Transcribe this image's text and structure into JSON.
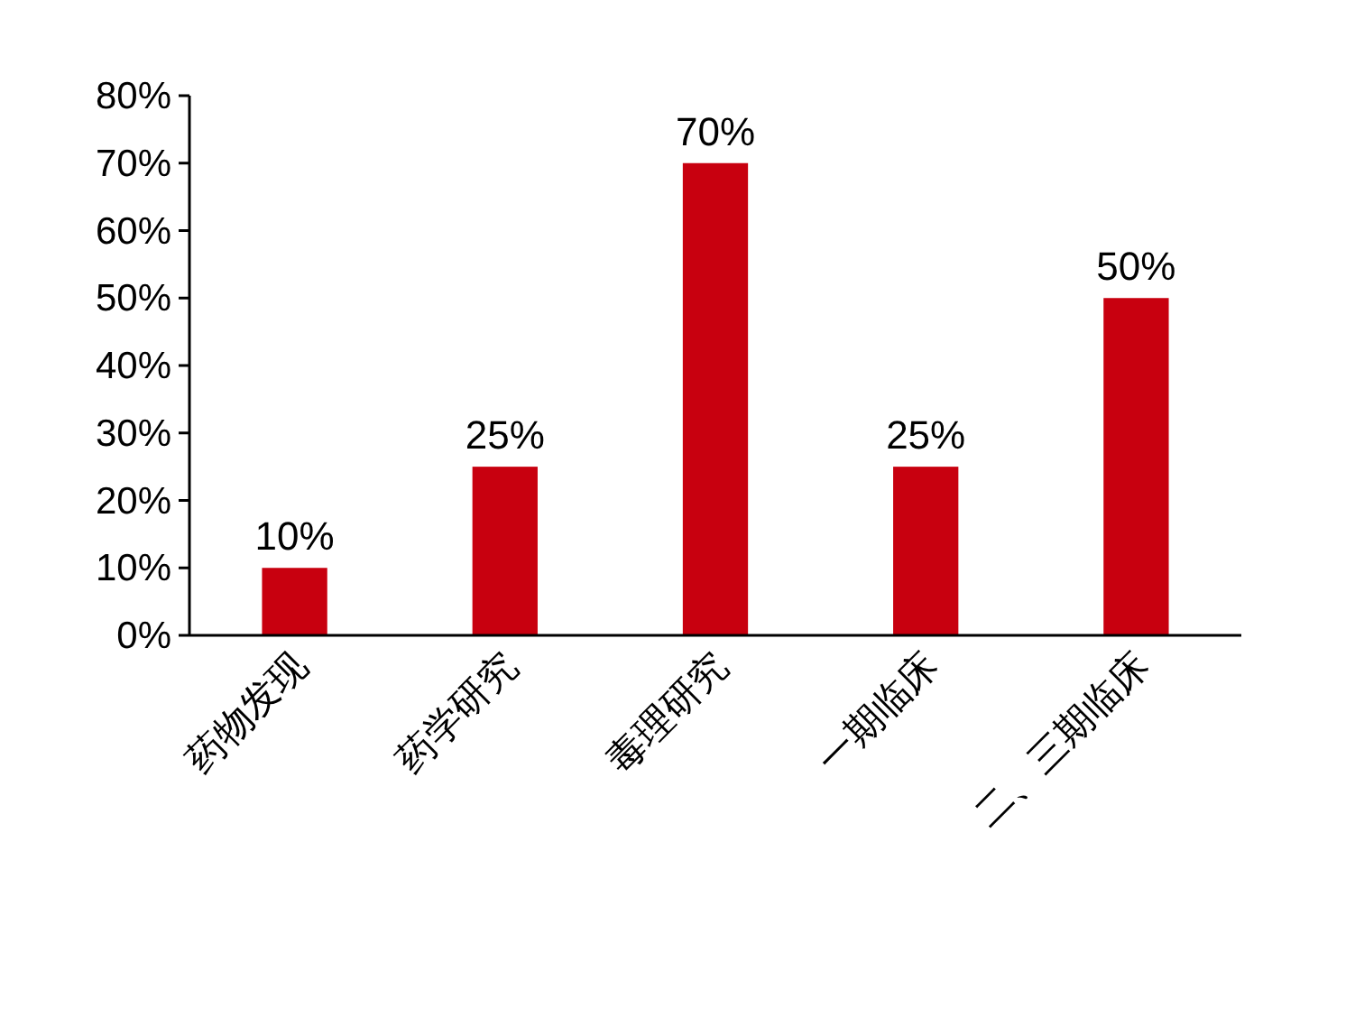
{
  "chart_data": {
    "type": "bar",
    "categories": [
      "药物发现",
      "药学研究",
      "毒理研究",
      "一期临床",
      "二、三期临床"
    ],
    "values": [
      10,
      25,
      70,
      25,
      50
    ],
    "value_labels": [
      "10%",
      "25%",
      "70%",
      "25%",
      "50%"
    ],
    "color": "#c8000f",
    "ylim": [
      0,
      80
    ],
    "yticks": [
      {
        "value": 0,
        "label": "0%"
      },
      {
        "value": 10,
        "label": "10%"
      },
      {
        "value": 20,
        "label": "20%"
      },
      {
        "value": 30,
        "label": "30%"
      },
      {
        "value": 40,
        "label": "40%"
      },
      {
        "value": 50,
        "label": "50%"
      },
      {
        "value": 60,
        "label": "60%"
      },
      {
        "value": 70,
        "label": "70%"
      },
      {
        "value": 80,
        "label": "80%"
      }
    ],
    "grid": false
  }
}
